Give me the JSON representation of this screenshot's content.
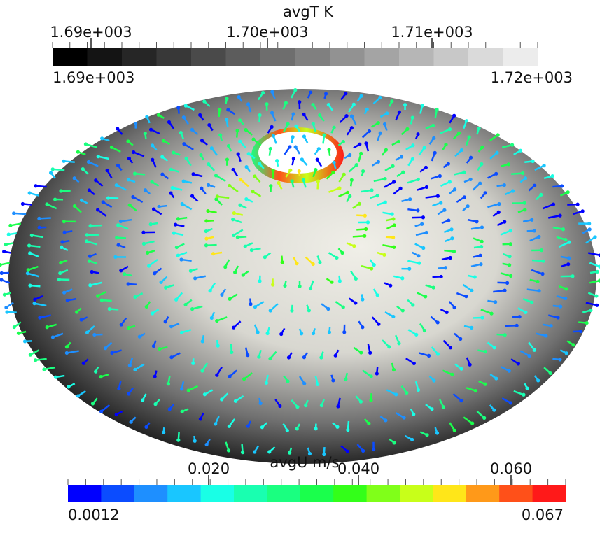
{
  "temperature_legend": {
    "title": "avgT K",
    "ticks": [
      "1.69e+003",
      "1.70e+003",
      "1.71e+003"
    ],
    "min_label": "1.69e+003",
    "max_label": "1.72e+003",
    "colors": [
      "#000000",
      "#141414",
      "#262626",
      "#383838",
      "#4a4a4a",
      "#5c5c5c",
      "#6e6e6e",
      "#808080",
      "#929292",
      "#a4a4a4",
      "#b6b6b6",
      "#c8c8c8",
      "#dadada",
      "#ececec"
    ]
  },
  "velocity_legend": {
    "title": "avgU m/s",
    "ticks": [
      "0.020",
      "0.040",
      "0.060"
    ],
    "min_label": "0.0012",
    "max_label": "0.067",
    "colors": [
      "#0000ff",
      "#0b4cff",
      "#1e8fff",
      "#19c6ff",
      "#19ffe6",
      "#19ffb0",
      "#1aff80",
      "#1aff4c",
      "#33ff19",
      "#80ff19",
      "#c8ff19",
      "#ffe619",
      "#ff9919",
      "#ff5019",
      "#ff1919"
    ]
  }
}
